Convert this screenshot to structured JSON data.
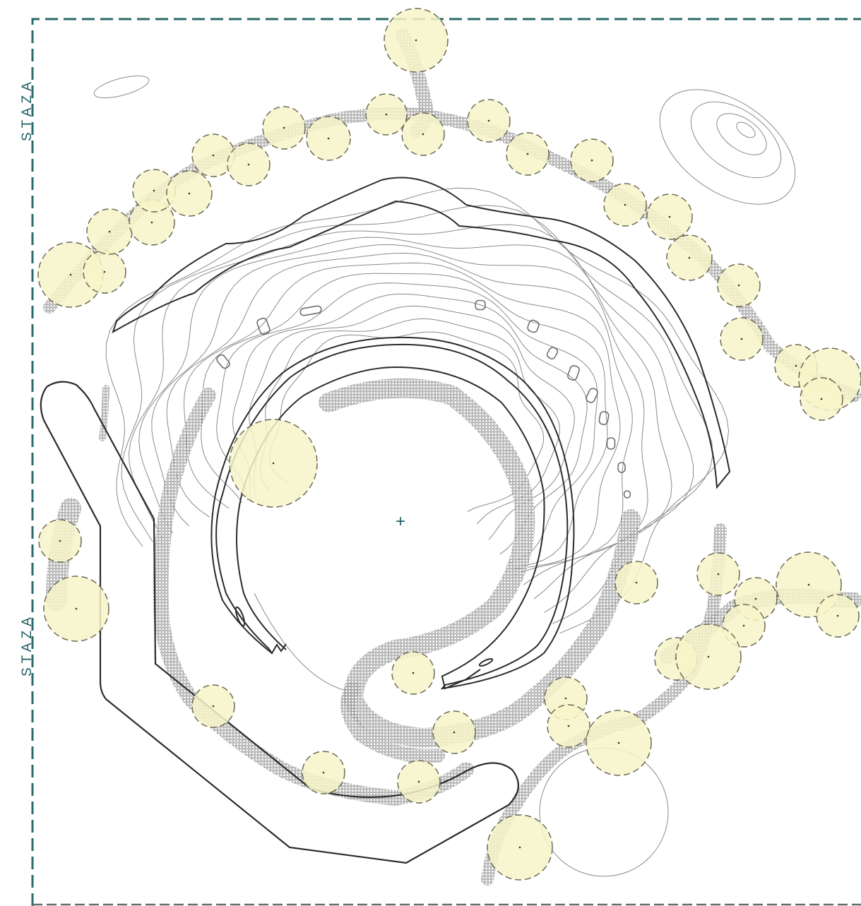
{
  "labels": {
    "path_top": "STAZA",
    "path_bottom": "STAZA"
  },
  "center_marker": "+",
  "colors": {
    "boundary": "#2a6a6a",
    "label": "#1f5f63",
    "canopy_fill": "#f7f4c8",
    "canopy_stroke": "#6d6a55",
    "contour": "#8a8a8a",
    "path_outline": "#2b2b2b",
    "hatch": "#777777"
  },
  "icons": {
    "center": "crosshair-icon",
    "tree": "tree-canopy-icon"
  }
}
